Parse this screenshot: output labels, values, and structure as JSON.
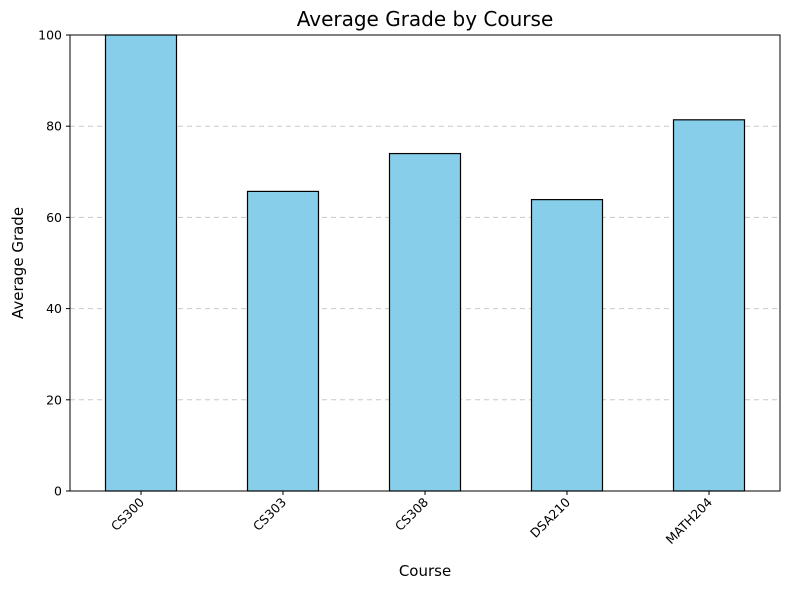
{
  "chart_data": {
    "type": "bar",
    "title": "Average Grade by Course",
    "xlabel": "Course",
    "ylabel": "Average Grade",
    "categories": [
      "CS300",
      "CS303",
      "CS308",
      "DSA210",
      "MATH204"
    ],
    "values": [
      100,
      65.7,
      74,
      63.9,
      81.4
    ],
    "ylim": [
      0,
      100
    ],
    "yticks": [
      0,
      20,
      40,
      60,
      80,
      100
    ],
    "grid": "y-dashed",
    "bar_color": "#87ceeb",
    "edge_color": "#000000"
  }
}
